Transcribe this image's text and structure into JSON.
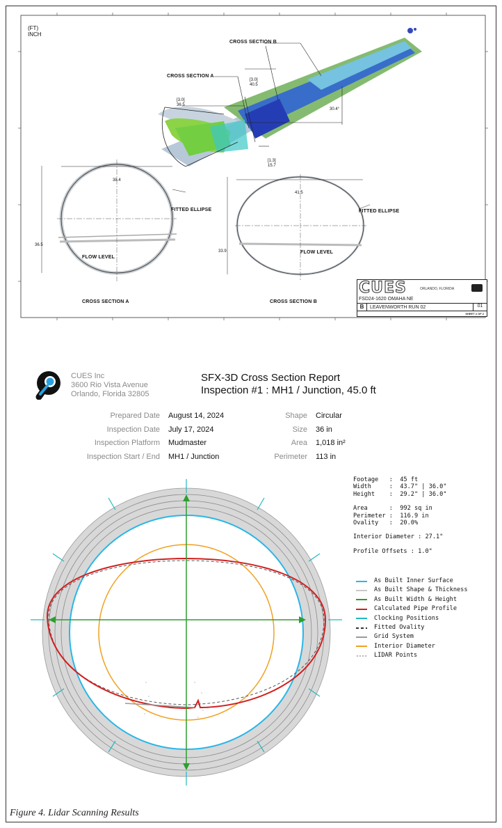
{
  "drawing": {
    "units_line1": "(FT)",
    "units_line2": "INCH",
    "cross_section_a_label": "CROSS SECTION A",
    "cross_section_b_label": "CROSS SECTION B",
    "flow_level_label": "FLOW LEVEL",
    "fitted_ellipse_label": "FITTED ELLIPSE",
    "dims": {
      "a_box": "[3.0]",
      "a_value": "36.5",
      "b_box": "[3.0]",
      "b_value": "40.5",
      "angle": "30.4°",
      "lower_box": "[1.3]",
      "lower_value": "15.7",
      "section_a_width": "38.4",
      "section_a_height": "36.5",
      "section_b_width": "41.5",
      "section_b_height": "33.9"
    },
    "title_block": {
      "logo_text": "CUES",
      "city": "ORLANDO, FLORIDA",
      "job": "FSD24-1620 OMAHA NE",
      "rev": "B",
      "run": "LEAVENWORTH RUN 02",
      "sheet_no": "01",
      "sheet": "SHEET 2 OF 2"
    }
  },
  "company": {
    "name": "CUES Inc",
    "address1": "3600 Rio Vista Avenue",
    "address2": "Orlando, Florida 32805"
  },
  "report": {
    "title": "SFX-3D Cross Section Report",
    "subtitle": "Inspection #1 : MH1 / Junction, 45.0 ft"
  },
  "details_left": [
    {
      "label": "Prepared Date",
      "value": "August 14, 2024"
    },
    {
      "label": "Inspection Date",
      "value": "July 17, 2024"
    },
    {
      "label": "Inspection Platform",
      "value": "Mudmaster"
    },
    {
      "label": "Inspection Start / End",
      "value": "MH1 / Junction"
    }
  ],
  "details_right": [
    {
      "label": "Shape",
      "value": "Circular"
    },
    {
      "label": "Size",
      "value": "36 in"
    },
    {
      "label": "Area",
      "value": "1,018 in²"
    },
    {
      "label": "Perimeter",
      "value": "113 in"
    }
  ],
  "stats": {
    "footage": "Footage   :  45 ft",
    "width": "Width     :  43.7\" | 36.0\"",
    "height": "Height    :  29.2\" | 36.0\"",
    "area": "Area      :  992 sq in",
    "perimeter": "Perimeter :  116.9 in",
    "ovality": "Ovality   :  20.0%",
    "interior_diameter": "Interior Diameter : 27.1\"",
    "profile_offsets": "Profile Offsets : 1.0\""
  },
  "legend": [
    {
      "label": "As Built Inner Surface",
      "color": "#29b6e6",
      "style": "solid"
    },
    {
      "label": "As Built Shape & Thickness",
      "color": "#c8c8c8",
      "style": "solid"
    },
    {
      "label": "As Built Width & Height",
      "color": "#2e9e2e",
      "style": "solid"
    },
    {
      "label": "Calculated Pipe Profile",
      "color": "#d11f1f",
      "style": "solid"
    },
    {
      "label": "Clocking Positions",
      "color": "#22b8c0",
      "style": "solid"
    },
    {
      "label": "Fitted Ovality",
      "color": "#333333",
      "style": "dashed"
    },
    {
      "label": "Grid System",
      "color": "#9a9a9a",
      "style": "solid"
    },
    {
      "label": "Interior Diameter",
      "color": "#f0a020",
      "style": "solid"
    },
    {
      "label": "LIDAR Points",
      "color": "#bbbbbb",
      "style": "dot"
    }
  ],
  "caption": "Figure 4. Lidar Scanning Results"
}
